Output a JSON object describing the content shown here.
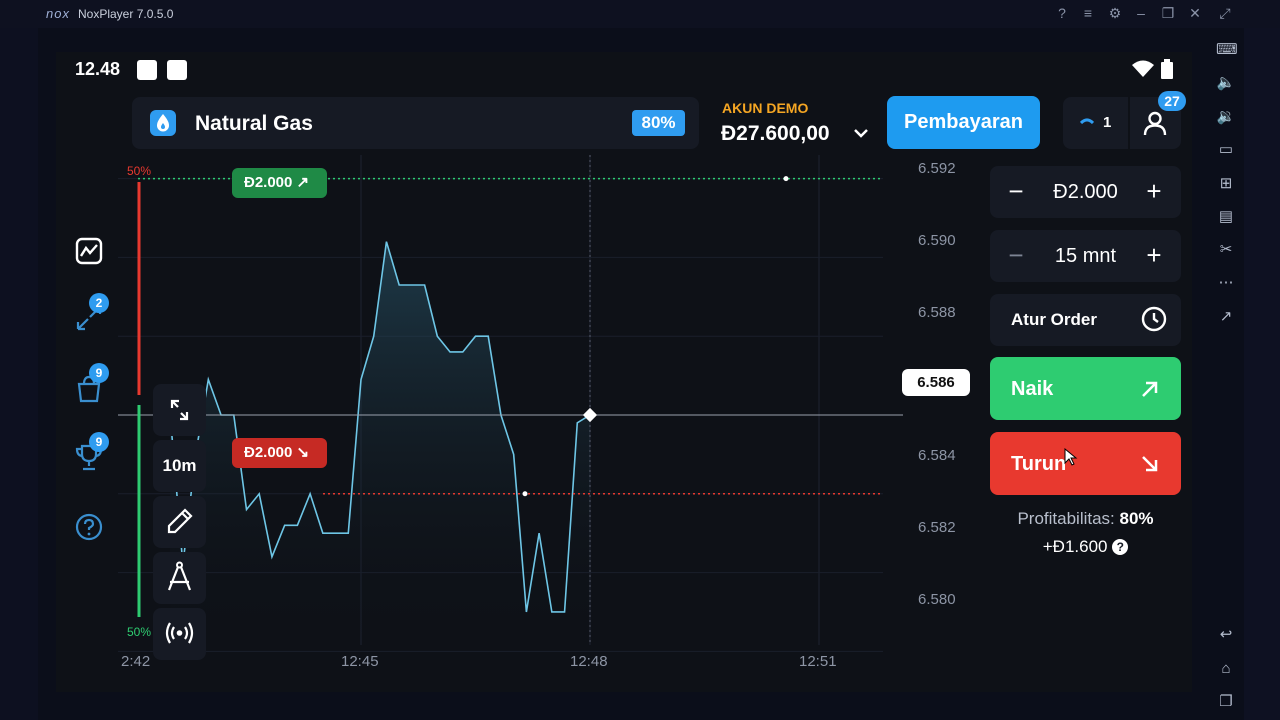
{
  "window": {
    "logo": "nox",
    "title": "NoxPlayer 7.0.5.0"
  },
  "status_bar": {
    "time": "12.48"
  },
  "asset": {
    "name": "Natural Gas",
    "payout": "80%",
    "icon": "flame-icon"
  },
  "account": {
    "label": "AKUN DEMO",
    "balance": "Đ27.600,00"
  },
  "header": {
    "payment_label": "Pembayaran",
    "open_trades": "1",
    "notifications": "27"
  },
  "left_menu": {
    "items": [
      {
        "icon": "chart-icon",
        "badge": ""
      },
      {
        "icon": "trades-arrows-icon",
        "badge": "2"
      },
      {
        "icon": "shopping-bag-icon",
        "badge": "9"
      },
      {
        "icon": "trophy-icon",
        "badge": "9"
      },
      {
        "icon": "help-icon",
        "badge": ""
      }
    ]
  },
  "tools": {
    "timeframe": "10m"
  },
  "chart_data": {
    "type": "line",
    "x": [
      "12:42:30",
      "12:42:40",
      "12:42:50",
      "12:43:00",
      "12:43:10",
      "12:43:20",
      "12:43:30",
      "12:43:40",
      "12:43:50",
      "12:44:00",
      "12:44:10",
      "12:44:20",
      "12:44:30",
      "12:44:40",
      "12:44:50",
      "12:45:00",
      "12:45:10",
      "12:45:20",
      "12:45:30",
      "12:45:40",
      "12:45:50",
      "12:46:00",
      "12:46:10",
      "12:46:20",
      "12:46:30",
      "12:46:40",
      "12:46:50",
      "12:47:00",
      "12:47:10",
      "12:47:20",
      "12:47:30",
      "12:47:40",
      "12:47:50",
      "12:48:00"
    ],
    "y": [
      6.586,
      6.5822,
      6.585,
      6.5869,
      6.586,
      6.586,
      6.5836,
      6.584,
      6.5824,
      6.5832,
      6.5832,
      6.584,
      6.583,
      6.583,
      6.583,
      6.5869,
      6.588,
      6.5904,
      6.5893,
      6.5893,
      6.5893,
      6.588,
      6.5876,
      6.5876,
      6.588,
      6.588,
      6.586,
      6.585,
      6.581,
      6.583,
      6.581,
      6.581,
      6.5858,
      6.586
    ],
    "x_ticks": [
      "2:42",
      "12:45",
      "12:48",
      "12:51"
    ],
    "y_ticks": [
      "6.592",
      "6.590",
      "6.588",
      "6.586",
      "6.584",
      "6.582",
      "6.580"
    ],
    "ylim": [
      6.5794,
      6.5926
    ],
    "current_price": "6.586",
    "up_line_price": 6.592,
    "down_line_price": 6.584,
    "up_percent": "50%",
    "down_percent": "50%",
    "up_order": "Đ2.000",
    "down_order": "Đ2.000",
    "colors": {
      "line": "#6ec6e6",
      "up": "#2ecc71",
      "down": "#e8392f"
    }
  },
  "trade_panel": {
    "amount": "Đ2.000",
    "duration": "15 mnt",
    "order_label": "Atur Order",
    "up_label": "Naik",
    "down_label": "Turun",
    "profit_label": "Profitabilitas:",
    "profit_value": "80%",
    "profit_amount": "+Đ1.600"
  }
}
